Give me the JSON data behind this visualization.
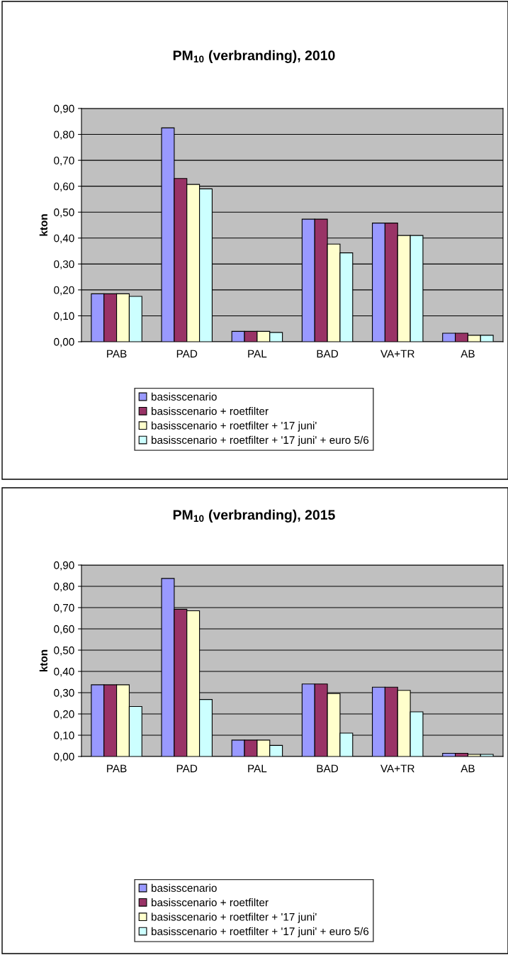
{
  "chart_data": [
    {
      "type": "bar",
      "title": "PM$_{10}$ (verbranding), 2010",
      "ylabel": "kton",
      "categories": [
        "PAB",
        "PAD",
        "PAL",
        "BAD",
        "VA+TR",
        "AB"
      ],
      "series": [
        {
          "name": "basisscenario",
          "color": "#9999ff",
          "values": [
            0.185,
            0.825,
            0.04,
            0.473,
            0.458,
            0.033
          ]
        },
        {
          "name": "basisscenario + roetfilter",
          "color": "#993366",
          "values": [
            0.185,
            0.63,
            0.04,
            0.473,
            0.458,
            0.033
          ]
        },
        {
          "name": "basisscenario + roetfilter + '17 juni'",
          "color": "#ffffcc",
          "values": [
            0.185,
            0.607,
            0.04,
            0.377,
            0.41,
            0.025
          ]
        },
        {
          "name": "basisscenario + roetfilter + '17 juni' + euro 5/6",
          "color": "#ccffff",
          "values": [
            0.175,
            0.59,
            0.036,
            0.343,
            0.41,
            0.025
          ]
        }
      ],
      "ylim": [
        0,
        0.9
      ],
      "yticks": [
        {
          "value": 0,
          "label": "0,00"
        },
        {
          "value": 0.1,
          "label": "0,10"
        },
        {
          "value": 0.2,
          "label": "0,20"
        },
        {
          "value": 0.3,
          "label": "0,30"
        },
        {
          "value": 0.4,
          "label": "0,40"
        },
        {
          "value": 0.5,
          "label": "0,50"
        },
        {
          "value": 0.6,
          "label": "0,60"
        },
        {
          "value": 0.7,
          "label": "0,70"
        },
        {
          "value": 0.8,
          "label": "0,80"
        },
        {
          "value": 0.9,
          "label": "0,90"
        }
      ],
      "grid": "y",
      "legend": "bottom"
    },
    {
      "type": "bar",
      "title": "PM$_{10}$ (verbranding), 2015",
      "ylabel": "kton",
      "categories": [
        "PAB",
        "PAD",
        "PAL",
        "BAD",
        "VA+TR",
        "AB"
      ],
      "series": [
        {
          "name": "basisscenario",
          "color": "#9999ff",
          "values": [
            0.337,
            0.837,
            0.077,
            0.341,
            0.326,
            0.015
          ]
        },
        {
          "name": "basisscenario + roetfilter",
          "color": "#993366",
          "values": [
            0.337,
            0.692,
            0.077,
            0.341,
            0.326,
            0.015
          ]
        },
        {
          "name": "basisscenario + roetfilter + '17 juni'",
          "color": "#ffffcc",
          "values": [
            0.337,
            0.685,
            0.077,
            0.296,
            0.311,
            0.01
          ]
        },
        {
          "name": "basisscenario + roetfilter + '17 juni' + euro 5/6",
          "color": "#ccffff",
          "values": [
            0.235,
            0.268,
            0.052,
            0.11,
            0.21,
            0.01
          ]
        }
      ],
      "ylim": [
        0,
        0.9
      ],
      "yticks": [
        {
          "value": 0,
          "label": "0,00"
        },
        {
          "value": 0.1,
          "label": "0,10"
        },
        {
          "value": 0.2,
          "label": "0,20"
        },
        {
          "value": 0.3,
          "label": "0,30"
        },
        {
          "value": 0.4,
          "label": "0,40"
        },
        {
          "value": 0.5,
          "label": "0,50"
        },
        {
          "value": 0.6,
          "label": "0,60"
        },
        {
          "value": 0.7,
          "label": "0,70"
        },
        {
          "value": 0.8,
          "label": "0,80"
        },
        {
          "value": 0.9,
          "label": "0,90"
        }
      ],
      "grid": "y",
      "legend": "bottom"
    }
  ]
}
